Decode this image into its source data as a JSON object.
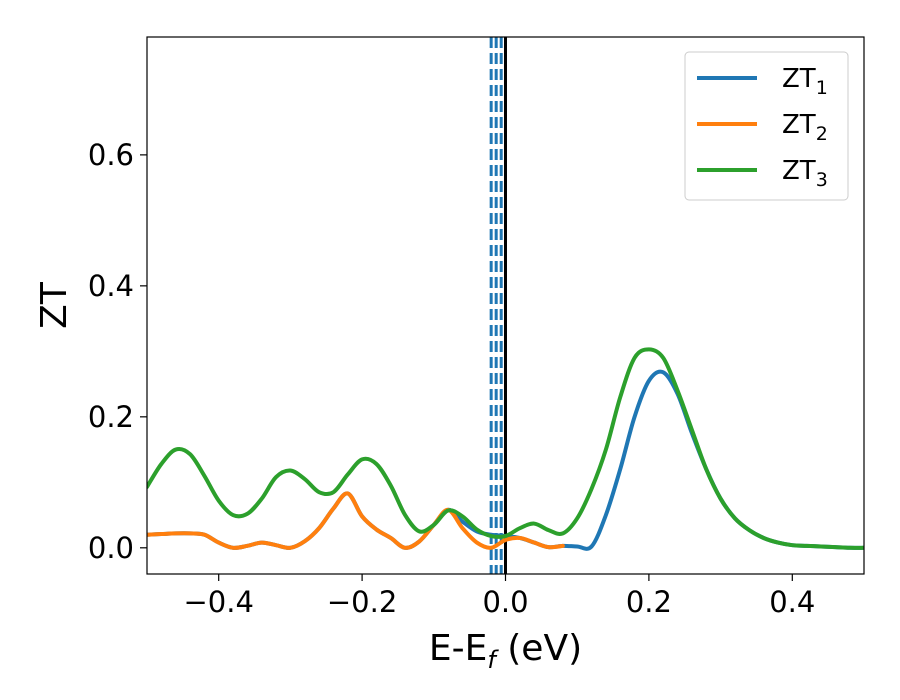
{
  "chart_data": {
    "type": "line",
    "xlabel": "E-E",
    "xlabel_sub": "f",
    "xlabel_unit": " (eV)",
    "ylabel": "ZT",
    "xlim": [
      -0.5,
      0.5
    ],
    "ylim": [
      -0.04,
      0.78
    ],
    "grid": false,
    "legend_position": "top-right",
    "x_ticks": [
      -0.4,
      -0.2,
      0.0,
      0.2,
      0.4
    ],
    "x_tick_labels": [
      "−0.4",
      "−0.2",
      "0.0",
      "0.2",
      "0.4"
    ],
    "y_ticks": [
      0.0,
      0.2,
      0.4,
      0.6
    ],
    "y_tick_labels": [
      "0.0",
      "0.2",
      "0.4",
      "0.6"
    ],
    "vertical_lines": [
      {
        "x": -0.02,
        "style": "dashed",
        "color": "#1f77b4"
      },
      {
        "x": -0.013,
        "style": "dashed",
        "color": "#1f77b4"
      },
      {
        "x": -0.006,
        "style": "dashed",
        "color": "#1f77b4"
      },
      {
        "x": 0.0,
        "style": "solid",
        "color": "#000000"
      }
    ],
    "series": [
      {
        "name": "ZT",
        "name_sub": "1",
        "color": "#1f77b4",
        "x": [
          -0.5,
          -0.48,
          -0.46,
          -0.44,
          -0.42,
          -0.4,
          -0.38,
          -0.36,
          -0.34,
          -0.32,
          -0.3,
          -0.28,
          -0.26,
          -0.24,
          -0.22,
          -0.2,
          -0.18,
          -0.16,
          -0.14,
          -0.12,
          -0.1,
          -0.08,
          -0.06,
          -0.04,
          -0.02,
          0.0,
          0.02,
          0.04,
          0.06,
          0.08,
          0.1,
          0.12,
          0.14,
          0.16,
          0.18,
          0.2,
          0.22,
          0.24,
          0.26,
          0.28,
          0.3,
          0.32,
          0.34,
          0.36,
          0.38,
          0.4,
          0.42,
          0.44,
          0.46,
          0.48,
          0.5
        ],
        "y": [
          0.02,
          0.021,
          0.022,
          0.022,
          0.02,
          0.008,
          0.0,
          0.003,
          0.008,
          0.004,
          0.0,
          0.01,
          0.03,
          0.06,
          0.083,
          0.048,
          0.028,
          0.015,
          0.0,
          0.01,
          0.035,
          0.058,
          0.04,
          0.025,
          0.02,
          0.018,
          0.015,
          0.008,
          0.001,
          0.003,
          0.002,
          0.002,
          0.05,
          0.12,
          0.2,
          0.255,
          0.268,
          0.235,
          0.175,
          0.12,
          0.075,
          0.045,
          0.027,
          0.015,
          0.008,
          0.004,
          0.003,
          0.002,
          0.001,
          0.0,
          0.0
        ]
      },
      {
        "name": "ZT",
        "name_sub": "2",
        "color": "#ff7f0e",
        "x": [
          -0.5,
          -0.48,
          -0.46,
          -0.44,
          -0.42,
          -0.4,
          -0.38,
          -0.36,
          -0.34,
          -0.32,
          -0.3,
          -0.28,
          -0.26,
          -0.24,
          -0.22,
          -0.2,
          -0.18,
          -0.16,
          -0.14,
          -0.12,
          -0.1,
          -0.08,
          -0.06,
          -0.04,
          -0.02,
          0.0,
          0.02,
          0.04,
          0.06,
          0.08
        ],
        "y": [
          0.02,
          0.021,
          0.022,
          0.022,
          0.02,
          0.008,
          0.0,
          0.003,
          0.008,
          0.004,
          0.0,
          0.01,
          0.03,
          0.06,
          0.083,
          0.048,
          0.028,
          0.015,
          0.0,
          0.01,
          0.035,
          0.058,
          0.03,
          0.008,
          0.0,
          0.012,
          0.015,
          0.008,
          0.001,
          0.003
        ]
      },
      {
        "name": "ZT",
        "name_sub": "3",
        "color": "#2ca02c",
        "x": [
          -0.5,
          -0.48,
          -0.46,
          -0.44,
          -0.42,
          -0.4,
          -0.38,
          -0.36,
          -0.34,
          -0.32,
          -0.3,
          -0.28,
          -0.26,
          -0.24,
          -0.22,
          -0.2,
          -0.18,
          -0.16,
          -0.14,
          -0.12,
          -0.1,
          -0.08,
          -0.06,
          -0.04,
          -0.02,
          0.0,
          0.02,
          0.04,
          0.06,
          0.08,
          0.1,
          0.12,
          0.14,
          0.16,
          0.18,
          0.2,
          0.22,
          0.24,
          0.26,
          0.28,
          0.3,
          0.32,
          0.34,
          0.36,
          0.38,
          0.4,
          0.42,
          0.44,
          0.46,
          0.48,
          0.5
        ],
        "y": [
          0.093,
          0.128,
          0.15,
          0.143,
          0.11,
          0.072,
          0.05,
          0.052,
          0.075,
          0.108,
          0.118,
          0.105,
          0.085,
          0.085,
          0.112,
          0.135,
          0.128,
          0.095,
          0.05,
          0.025,
          0.035,
          0.057,
          0.048,
          0.028,
          0.018,
          0.018,
          0.03,
          0.037,
          0.027,
          0.022,
          0.045,
          0.09,
          0.15,
          0.23,
          0.29,
          0.303,
          0.29,
          0.24,
          0.18,
          0.12,
          0.075,
          0.045,
          0.027,
          0.015,
          0.008,
          0.004,
          0.003,
          0.002,
          0.001,
          0.0,
          0.0
        ]
      }
    ]
  }
}
